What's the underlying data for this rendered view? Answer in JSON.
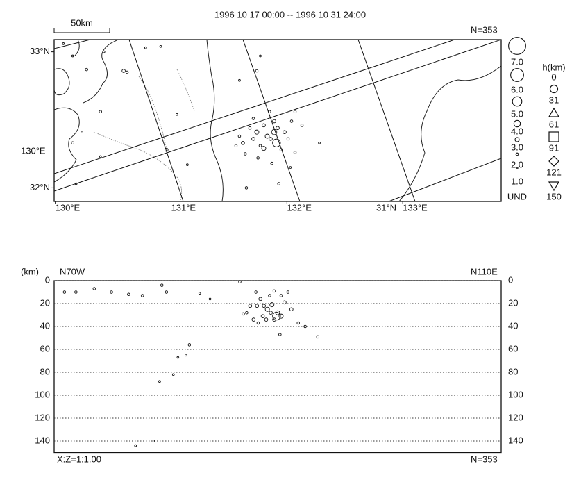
{
  "chart_data": [
    {
      "type": "map",
      "title": "1996 10 17 00:00 -- 1996 10 31 24:00",
      "scale_label": "50km",
      "count_label": "N=353",
      "lon": [
        130.07,
        130.15,
        130.27,
        130.42,
        130.59,
        130.62,
        130.78,
        130.91,
        130.39,
        130.15,
        130.23,
        130.39,
        130.18,
        130.96,
        131.14,
        131.05,
        131.74,
        131.59,
        131.77,
        131.65,
        131.93,
        132.28,
        132.13,
        131.59,
        131.62,
        131.68,
        131.71,
        131.74,
        131.77,
        131.8,
        131.83,
        131.86,
        131.91,
        131.92,
        131.95,
        131.98,
        132.01,
        132.04,
        132.07,
        131.85,
        131.75,
        131.87,
        131.56,
        131.64,
        131.89,
        131.8,
        131.71,
        132.07,
        132.03,
        131.89
      ],
      "lat": [
        33.06,
        32.97,
        32.87,
        33.0,
        32.86,
        32.85,
        33.03,
        33.04,
        32.56,
        32.33,
        32.41,
        32.23,
        32.03,
        32.28,
        32.17,
        32.54,
        32.86,
        32.79,
        32.97,
        32.0,
        32.03,
        32.33,
        32.46,
        32.38,
        32.33,
        32.44,
        32.36,
        32.41,
        32.31,
        32.46,
        32.38,
        32.36,
        32.33,
        32.44,
        32.28,
        32.41,
        32.36,
        32.49,
        32.26,
        32.56,
        32.22,
        32.18,
        32.31,
        32.25,
        32.49,
        32.29,
        32.51,
        32.56,
        32.15,
        32.41
      ],
      "mag": [
        1.5,
        1.5,
        2,
        1.5,
        2.5,
        2,
        1.5,
        1.5,
        2,
        2,
        1.5,
        1.5,
        1.5,
        2.5,
        1.5,
        1.5,
        2,
        1.5,
        1.5,
        2,
        2,
        1.5,
        2,
        2,
        2.5,
        2,
        2.5,
        3,
        2,
        2.5,
        3,
        2.5,
        4.5,
        2.5,
        2,
        2.5,
        2,
        2,
        2,
        2,
        2,
        2,
        2,
        2,
        2.5,
        3,
        2,
        2,
        1.5,
        3.5
      ],
      "xlim": [
        129.99,
        133.85
      ],
      "ylim": [
        31.9,
        33.09
      ],
      "xticks": [
        {
          "value": 130,
          "label": "130°E"
        },
        {
          "value": 131,
          "label": "131°E"
        },
        {
          "value": 132,
          "label": "132°E"
        },
        {
          "value": 133,
          "label": "133°E"
        }
      ],
      "yticks": [
        {
          "value": 33,
          "label": "33°N"
        },
        {
          "value": 32,
          "label": "32°N"
        }
      ],
      "frame_labels": [
        "130°E",
        "31°N"
      ],
      "magnitude_legend": [
        {
          "value": 7,
          "label": "7.0"
        },
        {
          "value": 6,
          "label": "6.0"
        },
        {
          "value": 5,
          "label": "5.0"
        },
        {
          "value": 4,
          "label": "4.0"
        },
        {
          "value": 3,
          "label": "3.0"
        },
        {
          "value": 2,
          "label": "2.0"
        },
        {
          "value": 1,
          "label": "1.0"
        }
      ],
      "magnitude_undetermined": "UND",
      "depth_legend": {
        "title": "h(km)",
        "values": [
          0,
          31,
          61,
          91,
          121,
          150
        ]
      }
    },
    {
      "type": "scatter",
      "y_unit_label": "(km)",
      "left_label": "N70W",
      "right_label": "N110E",
      "ratio_label": "X:Z=1:1.00",
      "count_label": "N=353",
      "x": [
        9,
        19,
        35,
        50,
        65,
        77,
        94,
        98,
        127,
        136,
        162,
        168,
        176,
        183,
        189,
        192,
        198,
        201,
        207,
        213,
        219,
        230,
        197,
        118,
        115,
        108,
        104,
        92,
        87,
        71,
        177,
        180,
        186,
        190,
        195,
        194,
        182,
        174,
        171,
        165,
        188,
        192,
        198,
        204,
        185,
        178
      ],
      "depth": [
        10,
        10,
        7,
        10,
        12,
        13,
        4,
        10,
        11,
        16,
        1,
        28,
        10,
        22,
        28,
        34,
        31,
        19,
        25,
        37,
        40,
        49,
        47,
        56,
        65,
        67,
        82,
        88,
        140,
        144,
        22,
        16,
        25,
        21,
        28,
        31,
        31,
        34,
        22,
        29,
        13,
        9,
        13,
        10,
        34,
        37
      ],
      "mag": [
        2,
        2,
        2,
        2,
        2,
        2,
        2,
        2,
        1.5,
        1.5,
        2,
        2,
        2,
        2.5,
        2.5,
        2.5,
        3,
        2.5,
        2.5,
        2,
        2,
        2,
        2,
        2,
        1.5,
        1.5,
        1.5,
        1.5,
        1.5,
        1.5,
        2.5,
        2.5,
        3,
        3,
        3,
        4.5,
        2.5,
        2.5,
        2.5,
        2,
        2,
        2,
        2,
        2,
        2.5,
        2
      ],
      "xlim": [
        0,
        390
      ],
      "ylim": [
        0,
        150
      ],
      "yticks": [
        0,
        20,
        40,
        60,
        80,
        100,
        120,
        140
      ],
      "grid": true
    }
  ]
}
